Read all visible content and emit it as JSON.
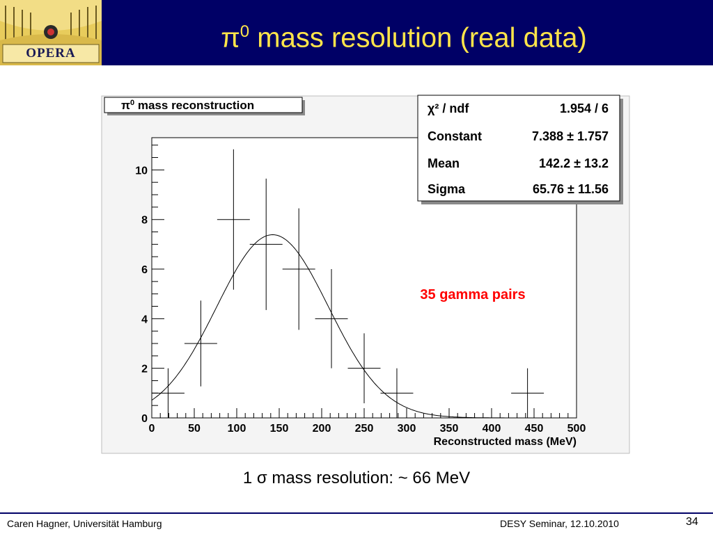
{
  "header": {
    "logo_text": "OPERA",
    "title_symbol": "π",
    "title_sup": "0",
    "title_text": " mass resolution (real data)"
  },
  "colors": {
    "header_bg": "#000066",
    "title": "#ffe54a",
    "annotation": "#ff0000"
  },
  "chart_data": {
    "type": "histogram_with_fit",
    "title_symbol": "π",
    "title_sup": "0",
    "title_text": " mass reconstruction",
    "xlabel": "Reconstructed mass (MeV)",
    "ylabel": "",
    "xlim": [
      0,
      500
    ],
    "ylim": [
      0,
      11.3
    ],
    "x_ticks": [
      0,
      50,
      100,
      150,
      200,
      250,
      300,
      350,
      400,
      450,
      500
    ],
    "y_ticks": [
      0,
      2,
      4,
      6,
      8,
      10
    ],
    "bin_width": 38.5,
    "points": [
      {
        "x": 19.2,
        "y": 1,
        "err": 1
      },
      {
        "x": 57.7,
        "y": 3,
        "err": 1.73
      },
      {
        "x": 96.2,
        "y": 8,
        "err": 2.83
      },
      {
        "x": 134.6,
        "y": 7,
        "err": 2.65
      },
      {
        "x": 173.1,
        "y": 6,
        "err": 2.45
      },
      {
        "x": 211.5,
        "y": 4,
        "err": 2
      },
      {
        "x": 250,
        "y": 2,
        "err": 1.41
      },
      {
        "x": 288.5,
        "y": 1,
        "err": 1
      },
      {
        "x": 442.3,
        "y": 1,
        "err": 1
      }
    ],
    "fit": {
      "function": "gaus",
      "constant": 7.388,
      "mean": 142.2,
      "sigma": 65.76,
      "x_range": [
        0,
        500
      ]
    },
    "stats": [
      {
        "label": "χ² / ndf",
        "value": "1.954 / 6"
      },
      {
        "label": "Constant",
        "value": "7.388 ± 1.757"
      },
      {
        "label": "Mean",
        "value": "142.2 ± 13.2"
      },
      {
        "label": "Sigma",
        "value": "65.76 ± 11.56"
      }
    ],
    "annotation": "35 gamma pairs",
    "grid": false
  },
  "caption": {
    "prefix": "1 ",
    "symbol": "σ",
    "text": " mass resolution:  ~ 66 MeV"
  },
  "footer": {
    "left": "Caren Hagner, Universität Hamburg",
    "right": "DESY Seminar, 12.10.2010",
    "page": "34"
  }
}
